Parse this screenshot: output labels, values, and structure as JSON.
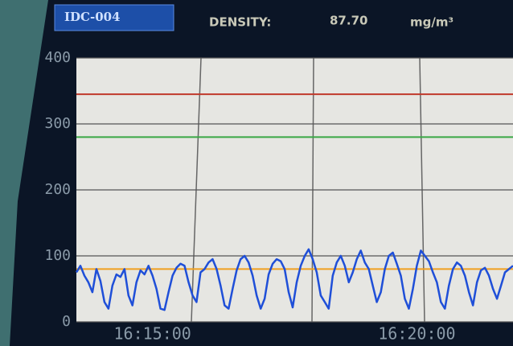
{
  "header": {
    "id": "IDC-004",
    "label": "DENSITY:",
    "value": "87.70",
    "unit": "mg/m³"
  },
  "chart_data": {
    "type": "line",
    "categories": [
      null,
      null,
      null,
      null,
      null,
      null,
      null,
      null,
      null,
      null,
      null,
      null,
      null,
      null,
      null,
      null,
      null,
      null,
      null,
      "16:15:00",
      null,
      null,
      null,
      null,
      null,
      null,
      null,
      null,
      null,
      null,
      null,
      null,
      null,
      null,
      null,
      null,
      null,
      null,
      null,
      null,
      null,
      null,
      null,
      null,
      null,
      null,
      null,
      null,
      null,
      null,
      null,
      null,
      null,
      null,
      null,
      null,
      null,
      null,
      null,
      null,
      null,
      null,
      null,
      null,
      null,
      null,
      null,
      null,
      null,
      null,
      null,
      null,
      null,
      null,
      null,
      null,
      null,
      null,
      null,
      null,
      null,
      null,
      null,
      null,
      null,
      "16:20:00",
      null,
      null,
      null,
      null,
      null,
      null,
      null,
      null,
      null,
      null,
      null,
      null,
      null,
      null,
      null,
      null,
      null,
      null,
      null,
      null,
      null,
      null,
      null,
      null
    ],
    "series": [
      {
        "color": "#1f4fd8",
        "values": [
          75,
          85,
          70,
          60,
          45,
          80,
          62,
          30,
          20,
          55,
          72,
          68,
          80,
          40,
          25,
          60,
          78,
          72,
          85,
          70,
          50,
          20,
          18,
          45,
          70,
          82,
          88,
          85,
          60,
          40,
          30,
          75,
          80,
          90,
          95,
          80,
          55,
          25,
          20,
          50,
          78,
          95,
          100,
          90,
          70,
          40,
          20,
          35,
          72,
          88,
          95,
          92,
          80,
          45,
          22,
          60,
          85,
          100,
          110,
          95,
          75,
          40,
          30,
          20,
          70,
          90,
          100,
          85,
          60,
          75,
          95,
          108,
          90,
          80,
          55,
          30,
          45,
          80,
          100,
          105,
          88,
          70,
          35,
          20,
          50,
          85,
          108,
          100,
          92,
          75,
          60,
          30,
          20,
          55,
          80,
          90,
          85,
          70,
          45,
          25,
          60,
          78,
          82,
          70,
          50,
          35,
          55,
          75,
          80,
          85
        ]
      }
    ],
    "hlines": [
      {
        "value": 345,
        "color": "#c0392b"
      },
      {
        "value": 280,
        "color": "#3aa845"
      },
      {
        "value": 80,
        "color": "#f0a020"
      }
    ],
    "ylim": [
      0,
      400
    ],
    "yticks": [
      0,
      100,
      200,
      300,
      400
    ],
    "grid": true
  }
}
